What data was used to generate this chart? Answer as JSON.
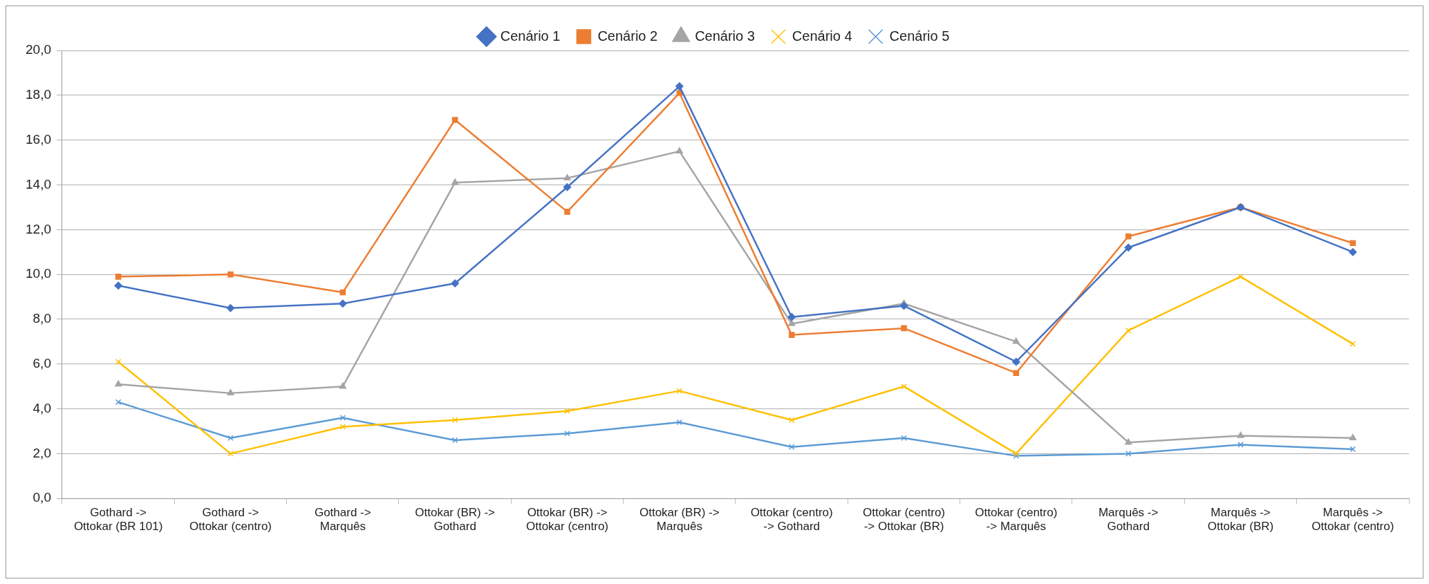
{
  "chart_data": {
    "type": "line",
    "categories": [
      "Gothard -> Ottokar (BR 101)",
      "Gothard -> Ottokar (centro)",
      "Gothard -> Marquês",
      "Ottokar (BR) -> Gothard",
      "Ottokar (BR) -> Ottokar (centro)",
      "Ottokar (BR) -> Marquês",
      "Ottokar (centro) -> Gothard",
      "Ottokar (centro) -> Ottokar (BR)",
      "Ottokar (centro) -> Marquês",
      "Marquês -> Gothard",
      "Marquês -> Ottokar (BR)",
      "Marquês -> Ottokar (centro)"
    ],
    "series": [
      {
        "name": "Cenário 1",
        "color": "#4472c4",
        "marker": "diamond",
        "values": [
          9.5,
          8.5,
          8.7,
          9.6,
          13.9,
          18.4,
          8.1,
          8.6,
          6.1,
          11.2,
          13.0,
          11.0
        ]
      },
      {
        "name": "Cenário 2",
        "color": "#ed7d31",
        "marker": "square",
        "values": [
          9.9,
          10.0,
          9.2,
          16.9,
          12.8,
          18.1,
          7.3,
          7.6,
          5.6,
          11.7,
          13.0,
          11.4
        ]
      },
      {
        "name": "Cenário 3",
        "color": "#a5a5a5",
        "marker": "triangle",
        "values": [
          5.1,
          4.7,
          5.0,
          14.1,
          14.3,
          15.5,
          7.8,
          8.7,
          7.0,
          2.5,
          2.8,
          2.7
        ]
      },
      {
        "name": "Cenário 4",
        "color": "#ffc000",
        "marker": "cross",
        "values": [
          6.1,
          2.0,
          3.2,
          3.5,
          3.9,
          4.8,
          3.5,
          5.0,
          2.0,
          7.5,
          9.9,
          6.9
        ]
      },
      {
        "name": "Cenário 5",
        "color": "#5b9bd5",
        "marker": "cross",
        "values": [
          4.3,
          2.7,
          3.6,
          2.6,
          2.9,
          3.4,
          2.3,
          2.7,
          1.9,
          2.0,
          2.4,
          2.2
        ]
      }
    ],
    "ylim": [
      0,
      20
    ],
    "yticks": [
      {
        "value": 0,
        "label": "0,0"
      },
      {
        "value": 2,
        "label": "2,0"
      },
      {
        "value": 4,
        "label": "4,0"
      },
      {
        "value": 6,
        "label": "6,0"
      },
      {
        "value": 8,
        "label": "8,0"
      },
      {
        "value": 10,
        "label": "10,0"
      },
      {
        "value": 12,
        "label": "12,0"
      },
      {
        "value": 14,
        "label": "14,0"
      },
      {
        "value": 16,
        "label": "16,0"
      },
      {
        "value": 18,
        "label": "18,0"
      },
      {
        "value": 20,
        "label": "20,0"
      }
    ],
    "grid": "y",
    "legend": "top",
    "line_style": "solid"
  }
}
